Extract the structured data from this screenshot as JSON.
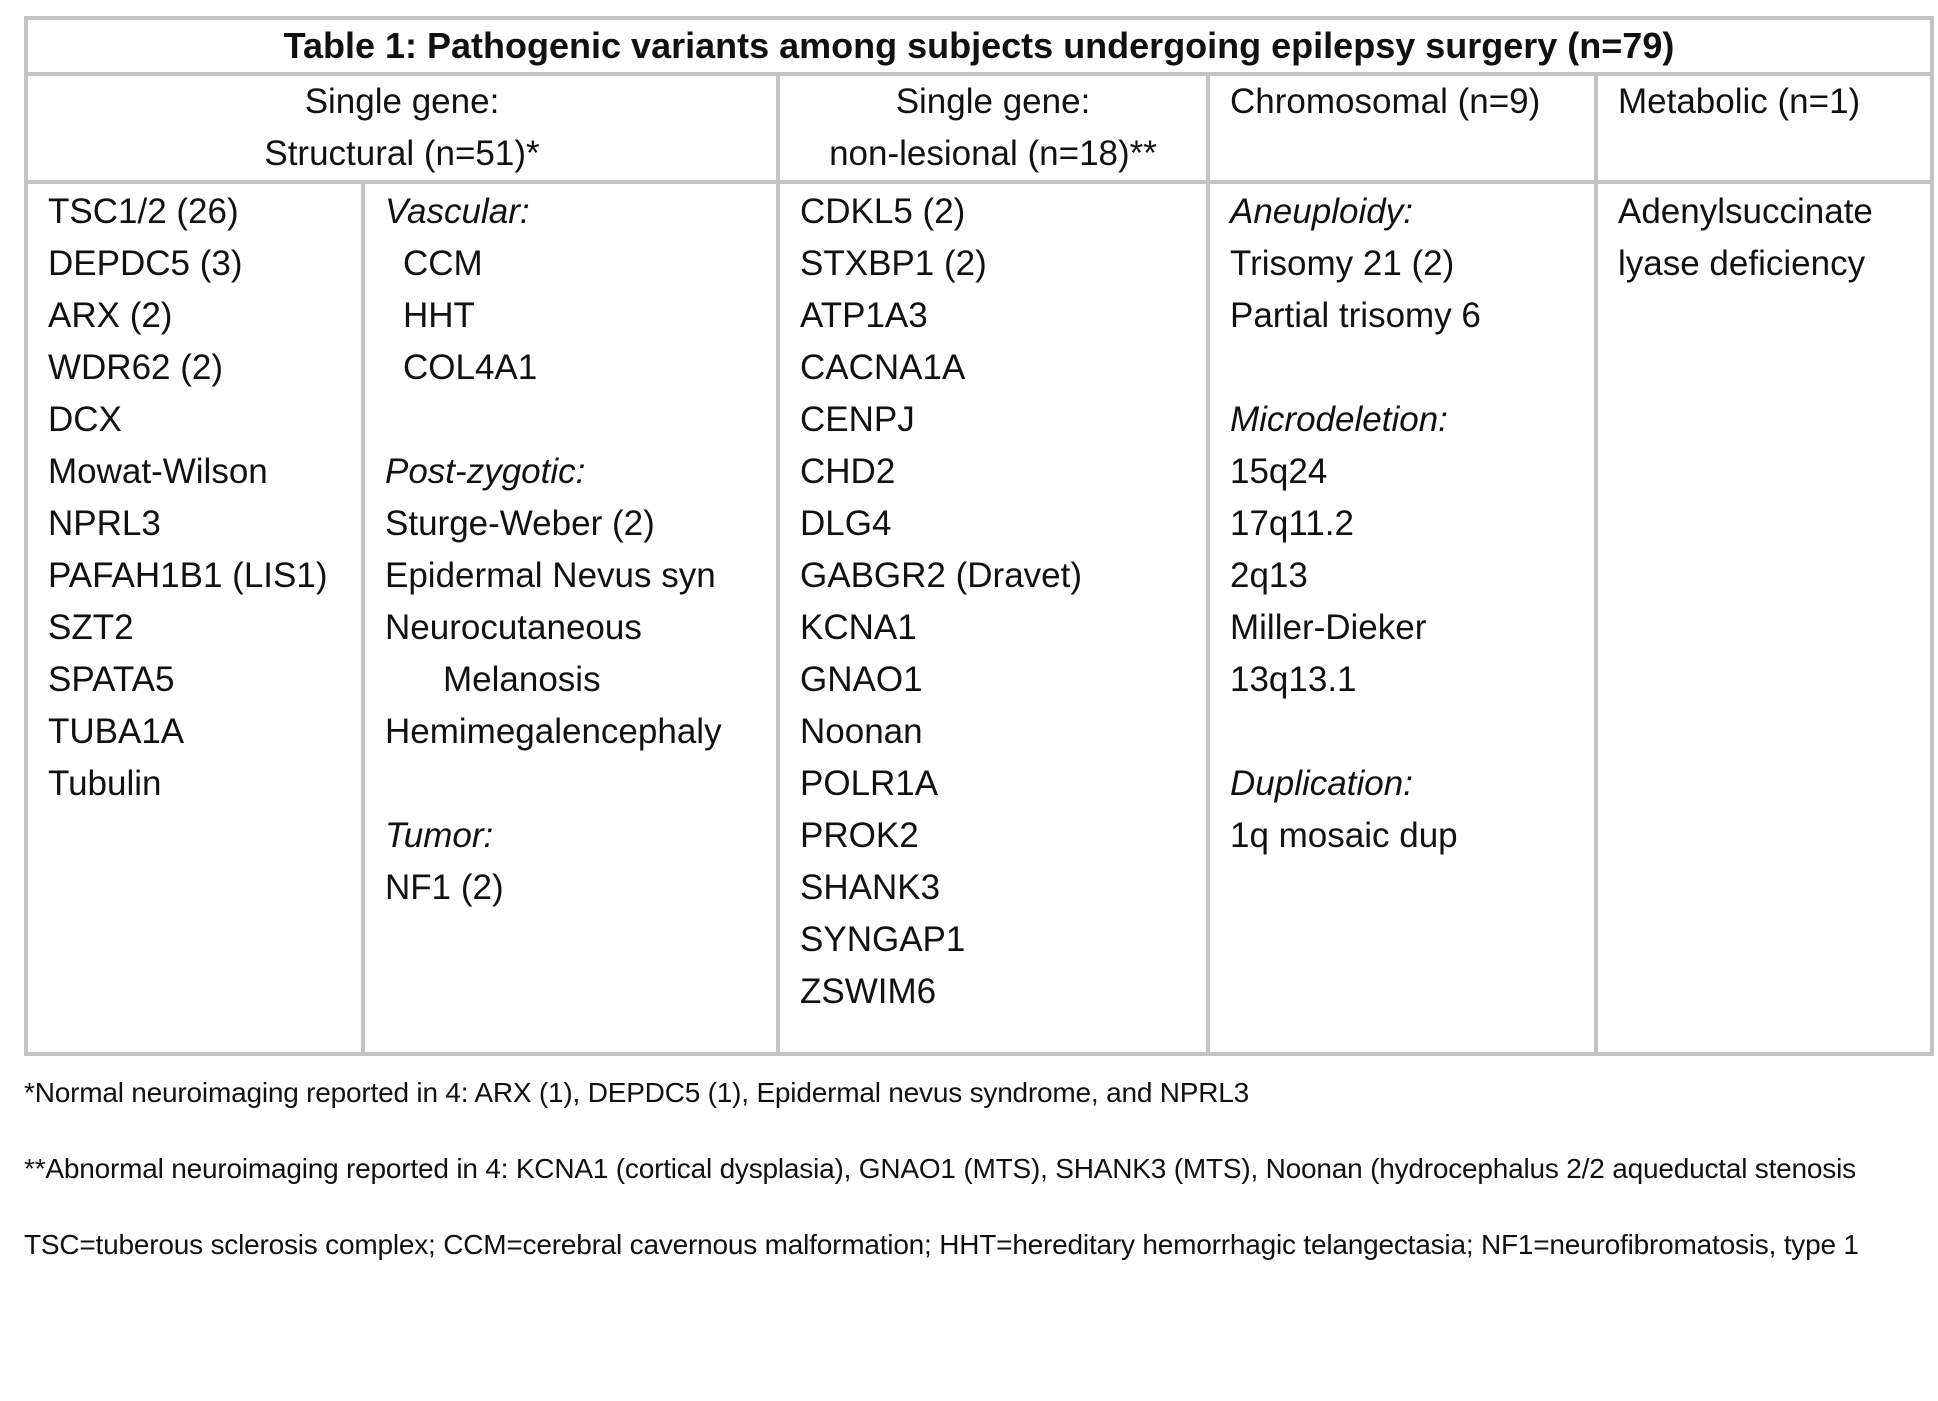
{
  "table": {
    "title": "Table 1:  Pathogenic variants among subjects undergoing epilepsy surgery (n=79)",
    "headers": {
      "structural_line1": "Single gene:",
      "structural_line2": "Structural (n=51)*",
      "nonlesional_line1": "Single gene:",
      "nonlesional_line2": "non-lesional  (n=18)**",
      "chromosomal": "Chromosomal (n=9)",
      "metabolic": "Metabolic (n=1)"
    },
    "structural_genes": [
      "TSC1/2 (26)",
      "DEPDC5 (3)",
      "ARX (2)",
      "WDR62 (2)",
      "DCX",
      "Mowat-Wilson",
      "NPRL3",
      "PAFAH1B1 (LIS1)",
      "SZT2",
      "SPATA5",
      "TUBA1A",
      "Tubulin"
    ],
    "structural_other": {
      "vascular_heading": "Vascular:",
      "vascular_items": [
        "CCM",
        "HHT",
        "COL4A1"
      ],
      "postzygotic_heading": "Post-zygotic:",
      "postzygotic_items": [
        "Sturge-Weber (2)",
        "Epidermal Nevus syn",
        "Neurocutaneous",
        "Melanosis",
        "Hemimegalencephaly"
      ],
      "tumor_heading": "Tumor:",
      "tumor_items": [
        "NF1 (2)"
      ]
    },
    "nonlesional_genes": [
      "CDKL5 (2)",
      "STXBP1 (2)",
      "ATP1A3",
      "CACNA1A",
      "CENPJ",
      "CHD2",
      "DLG4",
      "GABGR2 (Dravet)",
      "KCNA1",
      "GNAO1",
      "Noonan",
      "POLR1A",
      "PROK2",
      "SHANK3",
      "SYNGAP1",
      "ZSWIM6"
    ],
    "chromosomal": {
      "aneuploidy_heading": "Aneuploidy:",
      "aneuploidy_items": [
        "Trisomy 21 (2)",
        "Partial trisomy 6"
      ],
      "microdeletion_heading": "Microdeletion:",
      "microdeletion_items": [
        "15q24",
        "17q11.2",
        "2q13",
        "Miller-Dieker",
        "13q13.1"
      ],
      "duplication_heading": "Duplication:",
      "duplication_items": [
        "1q mosaic dup"
      ]
    },
    "metabolic": {
      "line1": "Adenylsuccinate",
      "line2": "lyase deficiency"
    }
  },
  "footnotes": {
    "note1": "*Normal neuroimaging reported in 4: ARX (1), DEPDC5 (1), Epidermal nevus syndrome, and NPRL3",
    "note2": "**Abnormal neuroimaging reported in 4: KCNA1 (cortical dysplasia), GNAO1 (MTS), SHANK3 (MTS),  Noonan (hydrocephalus 2/2 aqueductal stenosis",
    "note3": "TSC=tuberous sclerosis complex; CCM=cerebral cavernous malformation; HHT=hereditary hemorrhagic telangectasia; NF1=neurofibromatosis, type 1"
  }
}
